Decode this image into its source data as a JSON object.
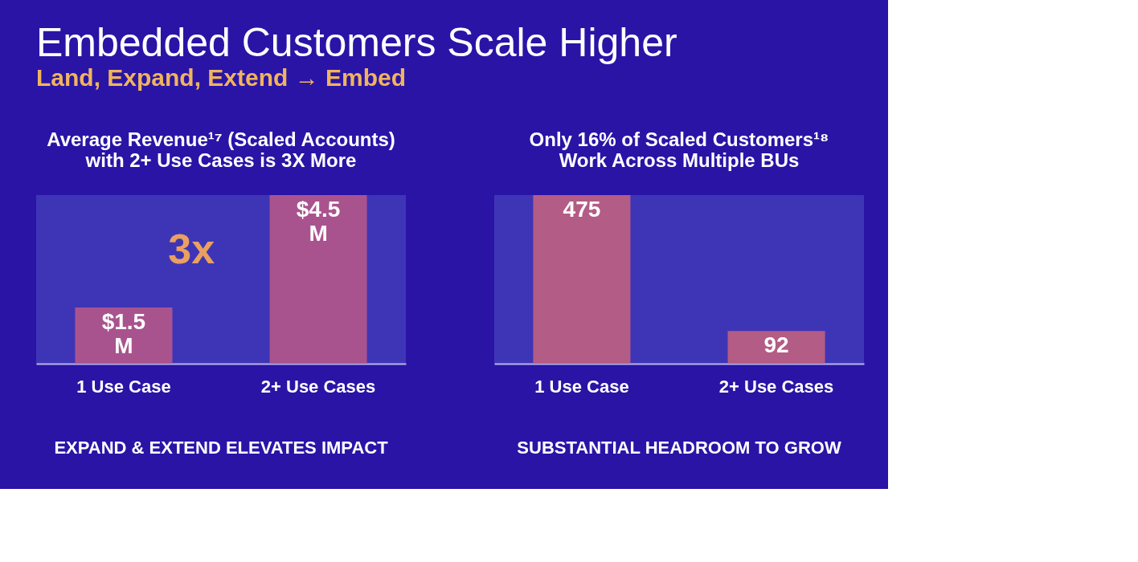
{
  "chart_data": [
    {
      "type": "bar",
      "title": "Average Revenue¹⁷ (Scaled Accounts)\nwith 2+ Use Cases is 3X More",
      "categories": [
        "1 Use Case",
        "2+ Use Cases"
      ],
      "values": [
        1.5,
        4.5
      ],
      "color": "#b5568a",
      "value_labels": [
        "$1.5 M",
        "$4.5 M"
      ],
      "grid": false,
      "legend": false,
      "annotations": [
        "Embedded Customers Scale Higher",
        "Land, Expand, Extend → Embed",
        "3x",
        "EXPAND & EXTEND ELEVATES IMPACT"
      ]
    },
    {
      "type": "bar",
      "title": "Only 16% of Scaled Customers¹⁸\nWork Across Multiple BUs",
      "categories": [
        "1 Use Case",
        "2+ Use Cases"
      ],
      "values": [
        475,
        92
      ],
      "color": "#c0607f",
      "data_labels": true,
      "grid": false,
      "legend": false,
      "annotations": [
        "SUBSTANTIAL HEADROOM TO GROW"
      ]
    }
  ]
}
